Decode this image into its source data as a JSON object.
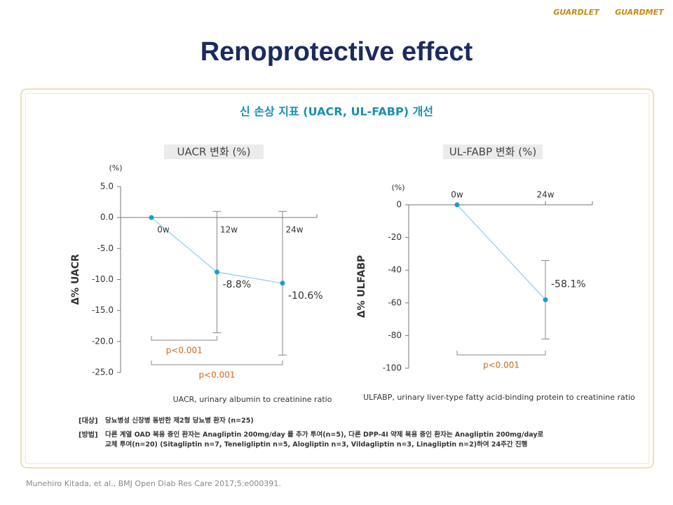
{
  "logo": [
    "GUARDLET",
    "GUARDMET"
  ],
  "title": "Renoprotective effect",
  "panel_title": "신 손상 지표 (UACR, UL-FABP) 개선",
  "chart_data": [
    {
      "type": "line",
      "title": "UACR 변화 (%)",
      "unit_label": "(%)",
      "y_label": "Δ% UACR",
      "categories": [
        "0w",
        "12w",
        "24w"
      ],
      "values": [
        0,
        -8.8,
        -10.6
      ],
      "value_labels": [
        null,
        "-8.8%",
        "-10.6%"
      ],
      "errors": [
        null,
        9.8,
        11.6
      ],
      "color": "#1b9bd1",
      "ylim": [
        -25,
        5
      ],
      "yticks": [
        {
          "value": 5,
          "label": "5.0"
        },
        {
          "value": 0,
          "label": "0.0"
        },
        {
          "value": -5,
          "label": "-5.0"
        },
        {
          "value": -10,
          "label": "-10.0"
        },
        {
          "value": -15,
          "label": "-15.0"
        },
        {
          "value": -20,
          "label": "-20.0"
        },
        {
          "value": -25,
          "label": "-25.0"
        }
      ],
      "brackets": [
        {
          "label": "p<0.001",
          "from": "0w",
          "to": "12w"
        },
        {
          "label": "p<0.001",
          "from": "0w",
          "to": "24w"
        }
      ],
      "caption": "UACR, urinary albumin to creatinine ratio"
    },
    {
      "type": "line",
      "title": "UL-FABP 변화 (%)",
      "unit_label": "(%)",
      "y_label": "Δ% ULFABP",
      "categories": [
        "0w",
        "24w"
      ],
      "values": [
        0,
        -58.1
      ],
      "value_labels": [
        null,
        "-58.1%"
      ],
      "errors": [
        null,
        24
      ],
      "color": "#1b9bd1",
      "ylim": [
        -100,
        0
      ],
      "yticks": [
        0,
        -20,
        -40,
        -60,
        -80,
        -100
      ],
      "brackets": [
        {
          "label": "p<0.001",
          "from": "0w",
          "to": "24w"
        }
      ],
      "caption": "ULFABP, urinary liver-type fatty acid-binding protein to creatinine ratio"
    }
  ],
  "notes": [
    {
      "tag": "[대상]",
      "lines": [
        "당뇨병성 신장병 동반한 제2형 당뇨병 환자 (n=25)"
      ]
    },
    {
      "tag": "[방법]",
      "lines": [
        "다른 계열 OAD 복용 중인 환자는 Anagliptin 200mg/day 를 추가 투여(n=5), 다른 DPP-4I 약제 복용 중인 환자는 Anagliptin 200mg/day로",
        "교체 투여(n=20) (Sitagliptin n=7, Teneligliptin n=5, Alogliptin n=3, Vildagliptin n=3, Linagliptin n=2)하여 24주간 진행"
      ]
    }
  ],
  "citation": "Munehiro Kitada, et al., BMJ Open Diab Res Care 2017;5:e000391."
}
